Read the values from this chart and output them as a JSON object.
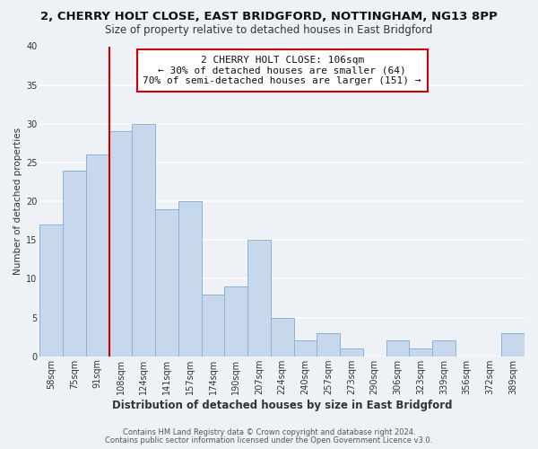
{
  "title": "2, CHERRY HOLT CLOSE, EAST BRIDGFORD, NOTTINGHAM, NG13 8PP",
  "subtitle": "Size of property relative to detached houses in East Bridgford",
  "xlabel": "Distribution of detached houses by size in East Bridgford",
  "ylabel": "Number of detached properties",
  "bar_labels": [
    "58sqm",
    "75sqm",
    "91sqm",
    "108sqm",
    "124sqm",
    "141sqm",
    "157sqm",
    "174sqm",
    "190sqm",
    "207sqm",
    "224sqm",
    "240sqm",
    "257sqm",
    "273sqm",
    "290sqm",
    "306sqm",
    "323sqm",
    "339sqm",
    "356sqm",
    "372sqm",
    "389sqm"
  ],
  "bar_values": [
    17,
    24,
    26,
    29,
    30,
    19,
    20,
    8,
    9,
    15,
    5,
    2,
    3,
    1,
    0,
    2,
    1,
    2,
    0,
    0,
    3
  ],
  "bar_color": "#c8d8ec",
  "bar_edge_color": "#8ab4d4",
  "reference_line_color": "#cc0000",
  "annotation_line1": "2 CHERRY HOLT CLOSE: 106sqm",
  "annotation_line2": "← 30% of detached houses are smaller (64)",
  "annotation_line3": "70% of semi-detached houses are larger (151) →",
  "annotation_box_color": "#ffffff",
  "annotation_box_edge": "#cc0000",
  "ylim": [
    0,
    40
  ],
  "yticks": [
    0,
    5,
    10,
    15,
    20,
    25,
    30,
    35,
    40
  ],
  "footer_line1": "Contains HM Land Registry data © Crown copyright and database right 2024.",
  "footer_line2": "Contains public sector information licensed under the Open Government Licence v3.0.",
  "background_color": "#eef2f7",
  "grid_color": "#ffffff",
  "title_fontsize": 9.5,
  "subtitle_fontsize": 8.5,
  "xlabel_fontsize": 8.5,
  "ylabel_fontsize": 7.5,
  "tick_fontsize": 7.0,
  "annotation_fontsize": 8.0,
  "footer_fontsize": 6.0
}
